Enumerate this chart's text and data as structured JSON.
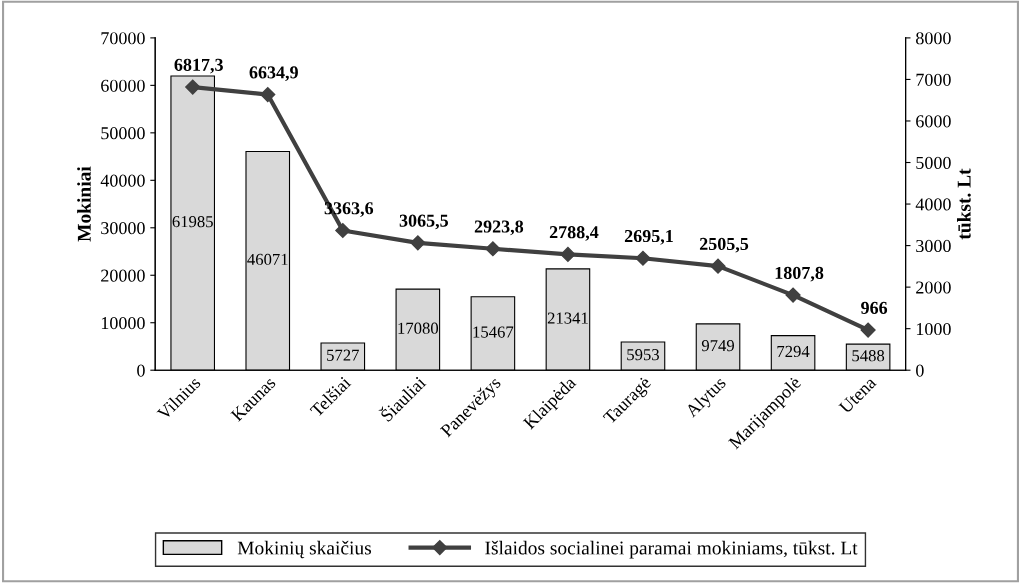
{
  "chart_data": {
    "type": "bar",
    "categories": [
      "Vilnius",
      "Kaunas",
      "Telšiai",
      "Šiauliai",
      "Panevėžys",
      "Klaipėda",
      "Tauragė",
      "Alytus",
      "Marijampolė",
      "Utena"
    ],
    "series": [
      {
        "name": "Mokinių skaičius",
        "color": "#d9d9d9",
        "values": [
          61985,
          46071,
          5727,
          17080,
          15467,
          21341,
          5953,
          9749,
          7294,
          5488
        ],
        "value_labels": [
          "61985",
          "46071",
          "5727",
          "17080",
          "15467",
          "21341",
          "5953",
          "9749",
          "7294",
          "5488"
        ]
      },
      {
        "name": "Išlaidos socialinei paramai mokiniams, tūkst. Lt",
        "type": "line",
        "axis": "y2",
        "color": "#404040",
        "marker": "diamond",
        "line_style": "solid",
        "values": [
          6817.3,
          6634.9,
          3363.6,
          3065.5,
          2923.8,
          2788.4,
          2695.1,
          2505.5,
          1807.8,
          966
        ],
        "value_labels": [
          "6817,3",
          "6634,9",
          "3363,6",
          "3065,5",
          "2923,8",
          "2788,4",
          "2695,1",
          "2505,5",
          "1807,8",
          "966"
        ]
      }
    ],
    "ylabel": "Mokiniai",
    "y2label": "tūkst. Lt",
    "ylim": [
      0,
      70000
    ],
    "yticks": [
      0,
      10000,
      20000,
      30000,
      40000,
      50000,
      60000,
      70000
    ],
    "y2lim": [
      0,
      8000
    ],
    "y2ticks": [
      0,
      1000,
      2000,
      3000,
      4000,
      5000,
      6000,
      7000,
      8000
    ],
    "grid": false,
    "legend": "bottom"
  }
}
